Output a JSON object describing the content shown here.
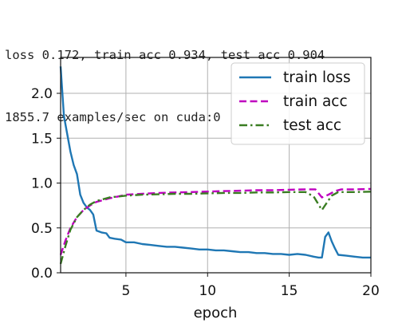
{
  "console": {
    "line1": "loss 0.172, train acc 0.934, test acc 0.904",
    "line2": "1855.7 examples/sec on cuda:0"
  },
  "chart_data": {
    "type": "line",
    "title": "",
    "xlabel": "epoch",
    "ylabel": "",
    "xlim": [
      1,
      20
    ],
    "ylim": [
      0,
      2.4
    ],
    "grid": true,
    "legend": "top-right",
    "xticks": [
      "5",
      "10",
      "15",
      "20"
    ],
    "yticks": [
      "0.0",
      "0.5",
      "1.0",
      "1.5",
      "2.0"
    ],
    "series": [
      {
        "name": "train loss",
        "color": "#1f77b4",
        "style": "solid",
        "x": [
          1.0,
          1.2,
          1.4,
          1.6,
          1.8,
          2.0,
          2.2,
          2.4,
          2.6,
          2.8,
          3.0,
          3.2,
          3.5,
          3.8,
          4.0,
          4.3,
          4.7,
          5.0,
          5.5,
          6.0,
          6.5,
          7.0,
          7.5,
          8.0,
          8.5,
          9.0,
          9.5,
          10.0,
          10.5,
          11.0,
          11.5,
          12.0,
          12.5,
          13.0,
          13.5,
          14.0,
          14.5,
          15.0,
          15.5,
          16.0,
          16.5,
          16.8,
          17.0,
          17.2,
          17.4,
          17.6,
          17.8,
          18.0,
          18.5,
          19.0,
          19.5,
          20.0
        ],
        "values": [
          2.3,
          1.75,
          1.55,
          1.35,
          1.2,
          1.1,
          0.87,
          0.78,
          0.73,
          0.7,
          0.65,
          0.47,
          0.45,
          0.44,
          0.39,
          0.38,
          0.37,
          0.34,
          0.34,
          0.32,
          0.31,
          0.3,
          0.29,
          0.29,
          0.28,
          0.27,
          0.26,
          0.26,
          0.25,
          0.25,
          0.24,
          0.23,
          0.23,
          0.22,
          0.22,
          0.21,
          0.21,
          0.2,
          0.21,
          0.2,
          0.18,
          0.17,
          0.17,
          0.4,
          0.45,
          0.35,
          0.27,
          0.2,
          0.19,
          0.18,
          0.17,
          0.17
        ]
      },
      {
        "name": "train acc",
        "color": "#bf00bf",
        "style": "dashed",
        "x": [
          1.0,
          1.3,
          1.6,
          2.0,
          2.4,
          2.8,
          3.2,
          3.6,
          4.0,
          4.5,
          5.0,
          6.0,
          7.0,
          8.0,
          9.0,
          10.0,
          11.0,
          12.0,
          13.0,
          14.0,
          15.0,
          16.0,
          16.6,
          17.0,
          17.4,
          17.8,
          18.2,
          19.0,
          20.0
        ],
        "values": [
          0.2,
          0.36,
          0.5,
          0.62,
          0.7,
          0.75,
          0.79,
          0.81,
          0.83,
          0.85,
          0.87,
          0.88,
          0.89,
          0.895,
          0.9,
          0.905,
          0.91,
          0.915,
          0.92,
          0.92,
          0.925,
          0.93,
          0.93,
          0.84,
          0.87,
          0.91,
          0.93,
          0.93,
          0.934
        ]
      },
      {
        "name": "test acc",
        "color": "#3a7d22",
        "style": "dashdot",
        "x": [
          1.0,
          1.3,
          1.6,
          2.0,
          2.4,
          2.8,
          3.2,
          3.6,
          4.0,
          4.5,
          5.0,
          6.0,
          7.0,
          8.0,
          9.0,
          10.0,
          11.0,
          12.0,
          13.0,
          14.0,
          15.0,
          16.0,
          16.5,
          17.0,
          17.3,
          17.6,
          18.0,
          19.0,
          20.0
        ],
        "values": [
          0.1,
          0.3,
          0.48,
          0.62,
          0.7,
          0.76,
          0.8,
          0.82,
          0.84,
          0.85,
          0.86,
          0.87,
          0.875,
          0.88,
          0.88,
          0.885,
          0.89,
          0.89,
          0.895,
          0.895,
          0.9,
          0.9,
          0.85,
          0.7,
          0.78,
          0.86,
          0.9,
          0.9,
          0.904
        ]
      }
    ]
  }
}
